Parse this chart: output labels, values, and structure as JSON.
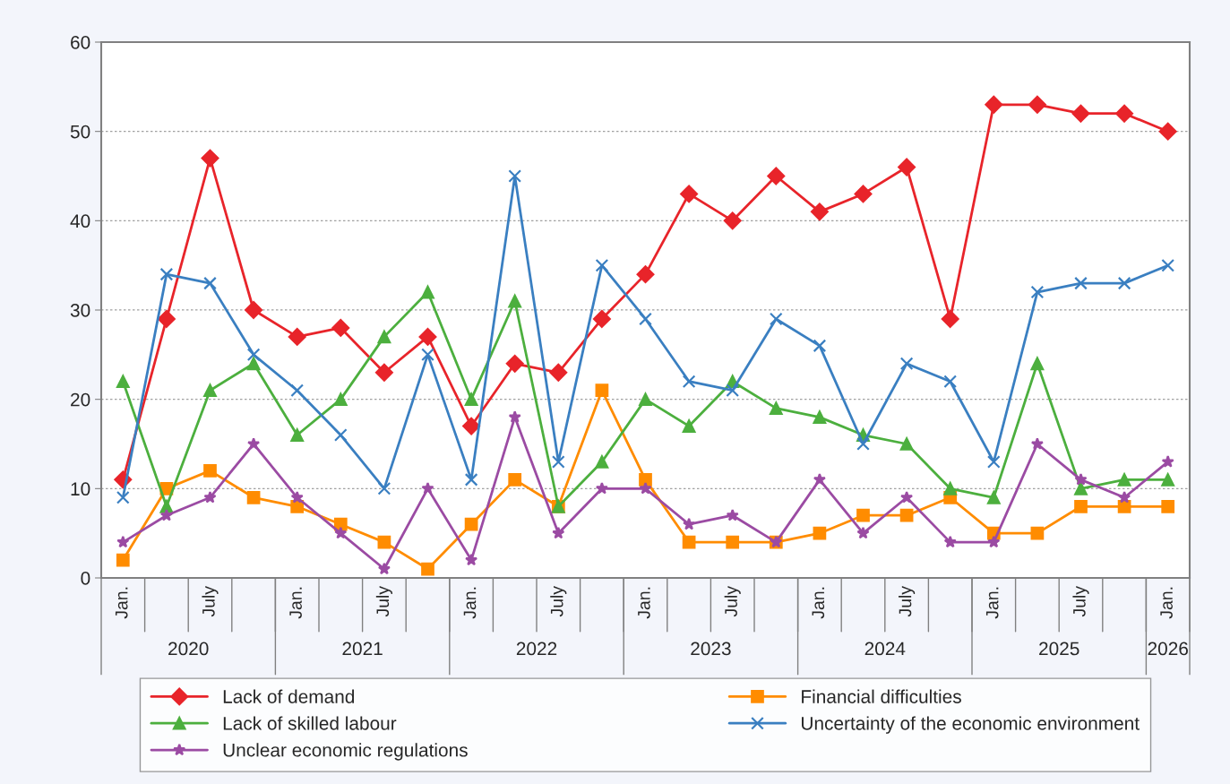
{
  "chart_data": {
    "type": "line",
    "categories": [
      "Jan.",
      null,
      "July",
      null,
      "Jan.",
      null,
      "July",
      null,
      "Jan.",
      null,
      "July",
      null,
      "Jan.",
      null,
      "July",
      null,
      "Jan.",
      null,
      "July",
      null,
      "Jan.",
      null,
      "July",
      null,
      "Jan."
    ],
    "annotations": [
      "2020",
      "2021",
      "2022",
      "2023",
      "2024",
      "2025",
      "2026"
    ],
    "series": [
      {
        "name": "Lack of demand",
        "color": "#e8242a",
        "marker": "diamond",
        "values": [
          11,
          29,
          47,
          30,
          27,
          28,
          23,
          27,
          17,
          24,
          23,
          29,
          34,
          43,
          40,
          45,
          41,
          43,
          46,
          29,
          53,
          53,
          52,
          52,
          50
        ]
      },
      {
        "name": "Financial difficulties",
        "color": "#ff8c00",
        "marker": "square",
        "values": [
          2,
          10,
          12,
          9,
          8,
          6,
          4,
          1,
          6,
          11,
          8,
          21,
          11,
          4,
          4,
          4,
          5,
          7,
          7,
          9,
          5,
          5,
          8,
          8,
          8
        ]
      },
      {
        "name": "Lack of skilled labour",
        "color": "#4caf3e",
        "marker": "triangle",
        "values": [
          22,
          8,
          21,
          24,
          16,
          20,
          27,
          32,
          20,
          31,
          8,
          13,
          20,
          17,
          22,
          19,
          18,
          16,
          15,
          10,
          9,
          24,
          10,
          11,
          11
        ]
      },
      {
        "name": "Uncertainty of the economic environment",
        "color": "#3a7fc1",
        "marker": "cross",
        "values": [
          9,
          34,
          33,
          25,
          21,
          16,
          10,
          25,
          11,
          45,
          13,
          35,
          29,
          22,
          21,
          29,
          26,
          15,
          24,
          22,
          13,
          32,
          33,
          33,
          35
        ]
      },
      {
        "name": "Unclear economic regulations",
        "color": "#9b4ba3",
        "marker": "star",
        "values": [
          4,
          7,
          9,
          15,
          9,
          5,
          1,
          10,
          2,
          18,
          5,
          10,
          10,
          6,
          7,
          4,
          11,
          5,
          9,
          4,
          4,
          15,
          11,
          9,
          13
        ]
      }
    ],
    "ylim": [
      0,
      60
    ],
    "yticks": [
      0,
      10,
      20,
      30,
      40,
      50,
      60
    ],
    "grid": "y",
    "legend": "bottom",
    "line_style": "solid"
  }
}
